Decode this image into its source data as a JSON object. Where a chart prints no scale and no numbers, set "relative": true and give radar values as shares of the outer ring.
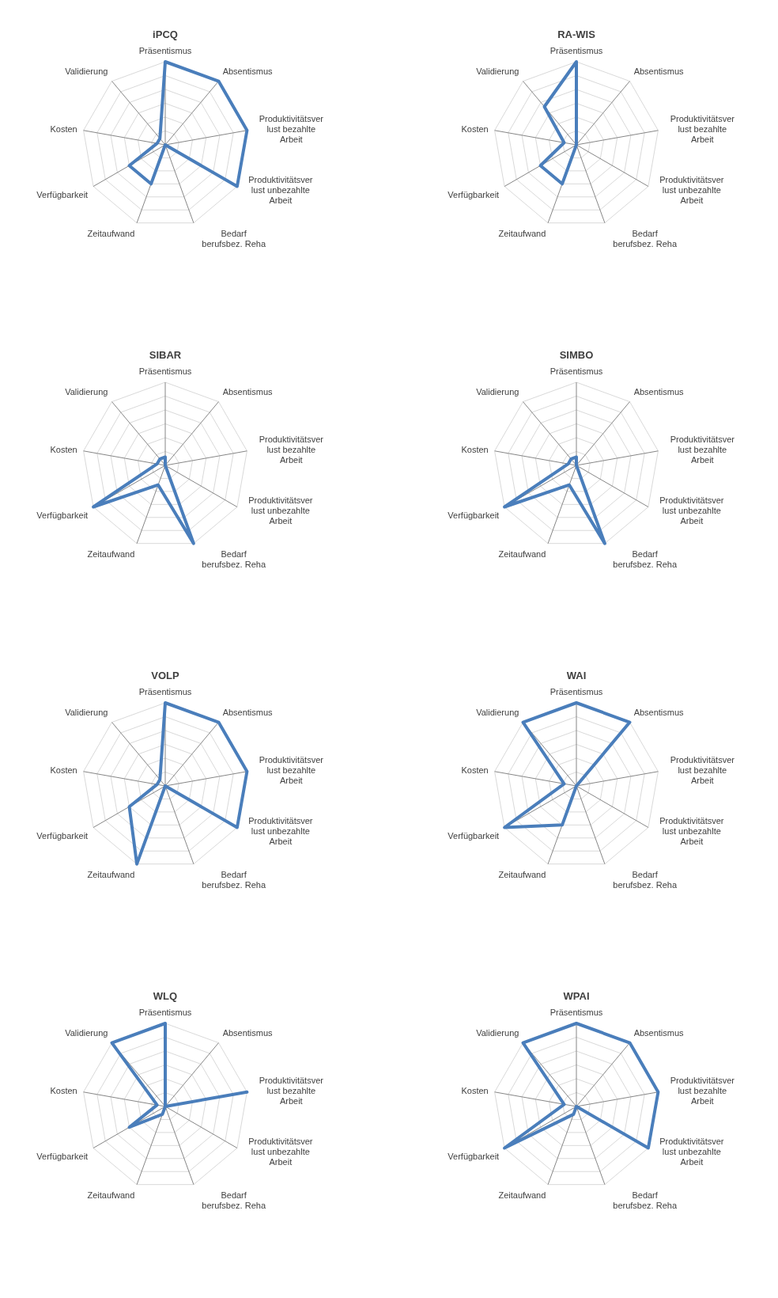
{
  "chart_data": [
    {
      "type": "radar",
      "title": "iPCQ",
      "relative": true,
      "grid": true,
      "categories": [
        "Präsentismus",
        "Absentismus",
        "Produktivitätsver\nlust bezahlte\nArbeit",
        "Produktivitätsver\nlust unbezahlte\nArbeit",
        "Bedarf\nberufsbez. Reha",
        "Zeitaufwand",
        "Verfügbarkeit",
        "Kosten",
        "Validierung"
      ],
      "series": [
        {
          "color": "#4a7ebb",
          "values": [
            1,
            1,
            1,
            1,
            0,
            0.5,
            0.5,
            0.1,
            0.1
          ]
        }
      ]
    },
    {
      "type": "radar",
      "title": "RA-WIS",
      "relative": true,
      "grid": true,
      "categories": [
        "Präsentismus",
        "Absentismus",
        "Produktivitätsver\nlust bezahlte\nArbeit",
        "Produktivitätsver\nlust unbezahlte\nArbeit",
        "Bedarf\nberufsbez. Reha",
        "Zeitaufwand",
        "Verfügbarkeit",
        "Kosten",
        "Validierung"
      ],
      "series": [
        {
          "color": "#4a7ebb",
          "values": [
            1,
            0,
            0,
            0,
            0,
            0.5,
            0.5,
            0.15,
            0.6
          ]
        }
      ]
    },
    {
      "type": "radar",
      "title": "SIBAR",
      "relative": true,
      "grid": true,
      "categories": [
        "Präsentismus",
        "Absentismus",
        "Produktivitätsver\nlust bezahlte\nArbeit",
        "Produktivitätsver\nlust unbezahlte\nArbeit",
        "Bedarf\nberufsbez. Reha",
        "Zeitaufwand",
        "Verfügbarkeit",
        "Kosten",
        "Validierung"
      ],
      "series": [
        {
          "color": "#4a7ebb",
          "values": [
            0.1,
            0,
            0,
            0,
            1,
            0.25,
            1,
            0.1,
            0.1
          ]
        }
      ]
    },
    {
      "type": "radar",
      "title": "SIMBO",
      "relative": true,
      "grid": true,
      "categories": [
        "Präsentismus",
        "Absentismus",
        "Produktivitätsver\nlust bezahlte\nArbeit",
        "Produktivitätsver\nlust unbezahlte\nArbeit",
        "Bedarf\nberufsbez. Reha",
        "Zeitaufwand",
        "Verfügbarkeit",
        "Kosten",
        "Validierung"
      ],
      "series": [
        {
          "color": "#4a7ebb",
          "values": [
            0.1,
            0,
            0,
            0,
            1,
            0.25,
            1,
            0.1,
            0.1
          ]
        }
      ]
    },
    {
      "type": "radar",
      "title": "VOLP",
      "relative": true,
      "grid": true,
      "categories": [
        "Präsentismus",
        "Absentismus",
        "Produktivitätsver\nlust bezahlte\nArbeit",
        "Produktivitätsver\nlust unbezahlte\nArbeit",
        "Bedarf\nberufsbez. Reha",
        "Zeitaufwand",
        "Verfügbarkeit",
        "Kosten",
        "Validierung"
      ],
      "series": [
        {
          "color": "#4a7ebb",
          "values": [
            1,
            1,
            1,
            1,
            0,
            1,
            0.5,
            0.1,
            0.1
          ]
        }
      ]
    },
    {
      "type": "radar",
      "title": "WAI",
      "relative": true,
      "grid": true,
      "categories": [
        "Präsentismus",
        "Absentismus",
        "Produktivitätsver\nlust bezahlte\nArbeit",
        "Produktivitätsver\nlust unbezahlte\nArbeit",
        "Bedarf\nberufsbez. Reha",
        "Zeitaufwand",
        "Verfügbarkeit",
        "Kosten",
        "Validierung"
      ],
      "series": [
        {
          "color": "#4a7ebb",
          "values": [
            1,
            1,
            0,
            0,
            0,
            0.5,
            1,
            0.15,
            1
          ]
        }
      ]
    },
    {
      "type": "radar",
      "title": "WLQ",
      "relative": true,
      "grid": true,
      "categories": [
        "Präsentismus",
        "Absentismus",
        "Produktivitätsver\nlust bezahlte\nArbeit",
        "Produktivitätsver\nlust unbezahlte\nArbeit",
        "Bedarf\nberufsbez. Reha",
        "Zeitaufwand",
        "Verfügbarkeit",
        "Kosten",
        "Validierung"
      ],
      "series": [
        {
          "color": "#4a7ebb",
          "values": [
            1,
            0,
            1,
            0,
            0,
            0.1,
            0.5,
            0.1,
            1
          ]
        }
      ]
    },
    {
      "type": "radar",
      "title": "WPAI",
      "relative": true,
      "grid": true,
      "categories": [
        "Präsentismus",
        "Absentismus",
        "Produktivitätsver\nlust bezahlte\nArbeit",
        "Produktivitätsver\nlust unbezahlte\nArbeit",
        "Bedarf\nberufsbez. Reha",
        "Zeitaufwand",
        "Verfügbarkeit",
        "Kosten",
        "Validierung"
      ],
      "series": [
        {
          "color": "#4a7ebb",
          "values": [
            1,
            1,
            1,
            1,
            0,
            0.1,
            1,
            0.15,
            1
          ]
        }
      ]
    }
  ]
}
